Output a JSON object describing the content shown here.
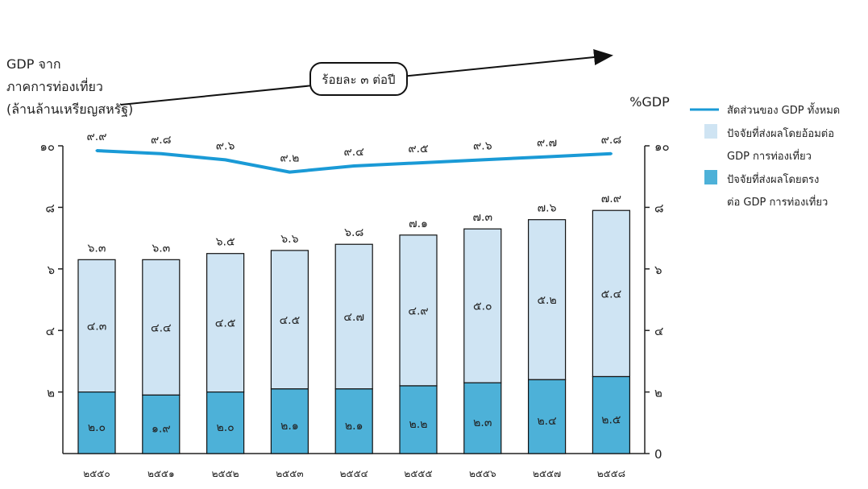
{
  "chart_data": {
    "type": "bar",
    "y_title_lines": [
      "GDP จาก",
      "ภาคการท่องเที่ยว",
      "(ล้านล้านเหรียญสหรัฐ)"
    ],
    "right_axis_title": "%GDP",
    "growth_label": "ร้อยละ ๓ ต่อปี",
    "categories": [
      "๒๕๕๐",
      "๒๕๕๑",
      "๒๕๕๒",
      "๒๕๕๓",
      "๒๕๕๔",
      "๒๕๕๕",
      "๒๕๕๖",
      "๒๕๕๗",
      "๒๕๕๘"
    ],
    "ylim": [
      0,
      10
    ],
    "left_ticks": [
      "๒",
      "๔",
      "๖",
      "๘",
      "๑๐"
    ],
    "right_ticks": [
      "0",
      "๒",
      "๔",
      "๖",
      "๘",
      "๑๐"
    ],
    "series": [
      {
        "name": "ปัจจัยที่ส่งผลโดยตรง ต่อ GDP การท่องเที่ยว",
        "values": [
          2.0,
          1.9,
          2.0,
          2.1,
          2.1,
          2.2,
          2.3,
          2.4,
          2.5
        ],
        "labels": [
          "๒.๐",
          "๑.๙",
          "๒.๐",
          "๒.๑",
          "๒.๑",
          "๒.๒",
          "๒.๓",
          "๒.๔",
          "๒.๕"
        ],
        "color": "#4db1d8"
      },
      {
        "name": "ปัจจัยที่ส่งผลโดยอ้อมต่อ GDP การท่องเที่ยว",
        "values": [
          4.3,
          4.4,
          4.5,
          4.5,
          4.7,
          4.9,
          5.0,
          5.2,
          5.4
        ],
        "labels": [
          "๔.๓",
          "๔.๔",
          "๔.๕",
          "๔.๕",
          "๔.๗",
          "๔.๙",
          "๕.๐",
          "๕.๒",
          "๕.๔"
        ],
        "color": "#cfe4f3"
      }
    ],
    "totals": [
      6.3,
      6.3,
      6.5,
      6.6,
      6.8,
      7.1,
      7.3,
      7.6,
      7.9
    ],
    "total_labels": [
      "๖.๓",
      "๖.๓",
      "๖.๕",
      "๖.๖",
      "๖.๘",
      "๗.๑",
      "๗.๓",
      "๗.๖",
      "๗.๙"
    ],
    "line": {
      "name": "สัดส่วนของ GDP ทั้งหมด",
      "values": [
        9.9,
        9.8,
        9.6,
        9.2,
        9.4,
        9.5,
        9.6,
        9.7,
        9.8
      ],
      "labels": [
        "๙.๙",
        "๙.๘",
        "๙.๖",
        "๙.๒",
        "๙.๔",
        "๙.๕",
        "๙.๖",
        "๙.๗",
        "๙.๘"
      ],
      "color": "#1a9ad6"
    },
    "legend": [
      {
        "kind": "line",
        "color": "#1a9ad6",
        "lines": [
          "สัดส่วนของ GDP ทั้งหมด"
        ]
      },
      {
        "kind": "box",
        "color": "#cfe4f3",
        "lines": [
          "ปัจจัยที่ส่งผลโดยอ้อมต่อ",
          "GDP การท่องเที่ยว"
        ]
      },
      {
        "kind": "box",
        "color": "#4db1d8",
        "lines": [
          "ปัจจัยที่ส่งผลโดยตรง",
          "ต่อ GDP การท่องเที่ยว"
        ]
      }
    ],
    "legend_position": "right"
  }
}
